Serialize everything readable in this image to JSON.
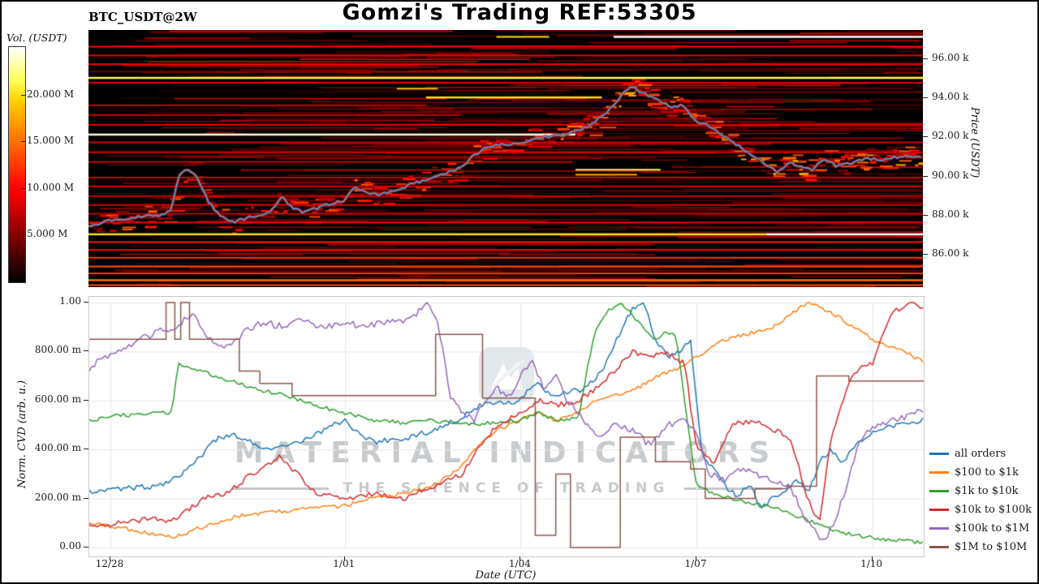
{
  "header": {
    "title": "Gomzi's Trading REF:53305",
    "symbol_label": "BTC_USDT@2W"
  },
  "colorbar": {
    "label": "Vol. (USDT)",
    "ticks": [
      "5.000 M",
      "10.000 M",
      "15.000 M",
      "20.000 M"
    ],
    "tick_values": [
      5,
      10,
      15,
      20
    ],
    "max_value": 25.2
  },
  "price_axis": {
    "label": "Price (USDT)",
    "ticks": [
      "96.00 k",
      "94.00 k",
      "92.00 k",
      "90.00 k",
      "88.00 k",
      "86.00 k"
    ],
    "tick_values": [
      96,
      94,
      92,
      90,
      88,
      86
    ]
  },
  "cvd_axis": {
    "ylabel": "Norm. CVD (arb. u.)",
    "xlabel": "Date (UTC)",
    "yticks": [
      "0.00",
      "200.00 m",
      "400.00 m",
      "600.00 m",
      "800.00 m",
      "1.00"
    ],
    "ytick_values": [
      0,
      0.2,
      0.4,
      0.6,
      0.8,
      1.0
    ],
    "xticks": [
      "12/28",
      "1/01",
      "1/04",
      "1/07",
      "1/10"
    ],
    "xtick_values": [
      1,
      5,
      8,
      11,
      14
    ]
  },
  "watermark": {
    "line1": "MATERIAL INDICATORS",
    "line2": "THE SCIENCE OF TRADING"
  },
  "chart_data": [
    {
      "type": "heatmap",
      "name": "volume-liquidity-heatmap",
      "x_unit": "days (12/27 = 0)",
      "xlim": [
        0.64,
        14.88
      ],
      "price_range_k": [
        84.3,
        97.45
      ],
      "colormap": "hot",
      "volume_max_musdt": 25.2,
      "price_line": {
        "name": "BTC price (k USDT)",
        "color": "#4f9bdb",
        "t": [
          0.64,
          1.0,
          1.5,
          1.9,
          2.05,
          2.2,
          2.35,
          2.5,
          2.7,
          2.9,
          3.1,
          3.4,
          3.7,
          3.95,
          4.1,
          4.3,
          4.5,
          4.8,
          5.0,
          5.15,
          5.3,
          5.6,
          5.9,
          6.2,
          6.5,
          6.8,
          7.0,
          7.2,
          7.45,
          7.7,
          8.0,
          8.2,
          8.5,
          8.8,
          9.0,
          9.2,
          9.5,
          9.7,
          9.9,
          10.05,
          10.2,
          10.4,
          10.6,
          10.8,
          11.0,
          11.2,
          11.5,
          11.8,
          12.0,
          12.2,
          12.4,
          12.6,
          12.8,
          13.0,
          13.2,
          13.4,
          13.6,
          13.9,
          14.2,
          14.5,
          14.88
        ],
        "p": [
          87.4,
          87.7,
          87.9,
          88.0,
          88.3,
          90.2,
          90.3,
          89.9,
          88.6,
          87.9,
          87.6,
          87.9,
          88.1,
          88.9,
          88.4,
          88.1,
          88.3,
          88.6,
          88.7,
          89.4,
          89.2,
          89.0,
          89.3,
          89.6,
          89.9,
          90.2,
          90.4,
          91.0,
          91.5,
          91.6,
          91.6,
          91.9,
          92.0,
          92.1,
          92.3,
          92.6,
          93.3,
          94.0,
          94.6,
          94.3,
          94.1,
          93.8,
          93.5,
          93.6,
          92.8,
          92.6,
          92.0,
          91.4,
          91.0,
          90.5,
          90.2,
          90.7,
          90.4,
          90.3,
          90.9,
          90.5,
          90.6,
          90.9,
          90.8,
          91.0,
          90.9
        ]
      },
      "liquidity_bands": [
        {
          "p": 97.1,
          "x0": 9.6,
          "x1": 14.88,
          "v": 1.0,
          "h": 2.5
        },
        {
          "p": 97.1,
          "x0": 7.6,
          "x1": 8.5,
          "v": 0.8,
          "h": 2
        },
        {
          "p": 95.0,
          "x0": 0.64,
          "x1": 14.88,
          "v": 0.85,
          "h": 2.5
        },
        {
          "p": 94.45,
          "x0": 5.9,
          "x1": 6.6,
          "v": 0.75,
          "h": 2
        },
        {
          "p": 94.0,
          "x0": 6.4,
          "x1": 9.4,
          "v": 0.8,
          "h": 2.5
        },
        {
          "p": 92.1,
          "x0": 0.64,
          "x1": 8.95,
          "v": 0.97,
          "h": 2.5
        },
        {
          "p": 90.3,
          "x0": 8.95,
          "x1": 10.4,
          "v": 0.85,
          "h": 2
        },
        {
          "p": 90.05,
          "x0": 8.95,
          "x1": 10.0,
          "v": 0.7,
          "h": 2
        },
        {
          "p": 87.0,
          "x0": 0.64,
          "x1": 12.2,
          "v": 0.8,
          "h": 2.5
        },
        {
          "p": 87.0,
          "x0": 12.2,
          "x1": 14.88,
          "v": 1.0,
          "h": 2.5
        },
        {
          "p": 96.6,
          "x0": 0.64,
          "x1": 14.88,
          "v": 0.4,
          "h": 2
        },
        {
          "p": 96.15,
          "x0": 0.64,
          "x1": 14.88,
          "v": 0.35,
          "h": 2
        },
        {
          "p": 95.7,
          "x0": 0.64,
          "x1": 14.88,
          "v": 0.38,
          "h": 2
        },
        {
          "p": 94.75,
          "x0": 0.64,
          "x1": 14.88,
          "v": 0.35,
          "h": 2
        },
        {
          "p": 93.6,
          "x0": 0.64,
          "x1": 6.4,
          "v": 0.3,
          "h": 2
        },
        {
          "p": 93.1,
          "x0": 0.64,
          "x1": 7.0,
          "v": 0.32,
          "h": 2
        },
        {
          "p": 92.6,
          "x0": 0.64,
          "x1": 14.88,
          "v": 0.35,
          "h": 2
        },
        {
          "p": 91.7,
          "x0": 0.64,
          "x1": 14.88,
          "v": 0.32,
          "h": 2
        },
        {
          "p": 91.2,
          "x0": 0.64,
          "x1": 14.88,
          "v": 0.35,
          "h": 2
        },
        {
          "p": 90.7,
          "x0": 0.64,
          "x1": 8.9,
          "v": 0.3,
          "h": 2
        },
        {
          "p": 89.9,
          "x0": 0.64,
          "x1": 14.88,
          "v": 0.3,
          "h": 2
        },
        {
          "p": 89.45,
          "x0": 0.64,
          "x1": 14.88,
          "v": 0.33,
          "h": 2
        },
        {
          "p": 88.95,
          "x0": 0.64,
          "x1": 14.88,
          "v": 0.3,
          "h": 2
        },
        {
          "p": 88.5,
          "x0": 0.64,
          "x1": 14.88,
          "v": 0.33,
          "h": 2
        },
        {
          "p": 88.05,
          "x0": 0.64,
          "x1": 14.88,
          "v": 0.3,
          "h": 2
        },
        {
          "p": 87.6,
          "x0": 0.64,
          "x1": 14.88,
          "v": 0.35,
          "h": 2
        },
        {
          "p": 86.6,
          "x0": 0.64,
          "x1": 14.88,
          "v": 0.45,
          "h": 2
        },
        {
          "p": 86.2,
          "x0": 0.64,
          "x1": 14.88,
          "v": 0.4,
          "h": 2
        },
        {
          "p": 85.8,
          "x0": 0.64,
          "x1": 14.88,
          "v": 0.5,
          "h": 2
        },
        {
          "p": 85.35,
          "x0": 0.64,
          "x1": 14.88,
          "v": 0.55,
          "h": 2
        },
        {
          "p": 85.0,
          "x0": 0.64,
          "x1": 14.88,
          "v": 0.5,
          "h": 2
        },
        {
          "p": 84.65,
          "x0": 0.64,
          "x1": 14.88,
          "v": 0.6,
          "h": 2.5
        },
        {
          "p": 84.4,
          "x0": 0.64,
          "x1": 14.88,
          "v": 0.55,
          "h": 2
        }
      ]
    },
    {
      "type": "line",
      "name": "normalized-cvd",
      "xlabel": "Date (UTC)",
      "ylabel": "Norm. CVD (arb. u.)",
      "x_unit": "days (12/27 = 0)",
      "xlim": [
        0.64,
        14.88
      ],
      "ylim": [
        -0.04,
        1.06
      ],
      "grid": true,
      "legend_position": "right-outside",
      "series": [
        {
          "name": "all orders",
          "color": "#1f77b4",
          "step": false,
          "t": [
            0.64,
            1.2,
            1.8,
            2.2,
            2.5,
            2.8,
            3.1,
            3.4,
            3.7,
            4.0,
            4.4,
            4.8,
            5.0,
            5.2,
            5.5,
            5.8,
            6.1,
            6.4,
            6.7,
            7.0,
            7.3,
            7.6,
            7.9,
            8.1,
            8.3,
            8.5,
            8.8,
            9.1,
            9.4,
            9.7,
            9.9,
            10.1,
            10.3,
            10.5,
            10.7,
            10.9,
            11.0,
            11.1,
            11.3,
            11.5,
            11.7,
            11.9,
            12.1,
            12.3,
            12.5,
            12.7,
            12.9,
            13.1,
            13.3,
            13.5,
            13.7,
            13.9,
            14.1,
            14.4,
            14.88
          ],
          "v": [
            0.23,
            0.24,
            0.25,
            0.3,
            0.36,
            0.44,
            0.46,
            0.43,
            0.4,
            0.41,
            0.45,
            0.5,
            0.52,
            0.47,
            0.43,
            0.44,
            0.45,
            0.47,
            0.5,
            0.53,
            0.58,
            0.6,
            0.59,
            0.63,
            0.68,
            0.62,
            0.63,
            0.65,
            0.72,
            0.88,
            0.97,
            1.0,
            0.85,
            0.78,
            0.8,
            0.84,
            0.6,
            0.38,
            0.32,
            0.25,
            0.21,
            0.26,
            0.16,
            0.2,
            0.22,
            0.28,
            0.22,
            0.35,
            0.4,
            0.35,
            0.42,
            0.45,
            0.48,
            0.5,
            0.52
          ]
        },
        {
          "name": "$100 to $1k",
          "color": "#ff7f0e",
          "step": false,
          "t": [
            0.64,
            1.2,
            1.8,
            2.1,
            2.4,
            2.8,
            3.2,
            3.6,
            4.0,
            4.5,
            5.0,
            5.5,
            6.0,
            6.5,
            7.0,
            7.3,
            7.6,
            8.0,
            8.3,
            8.6,
            9.0,
            9.3,
            9.6,
            10.0,
            10.3,
            10.6,
            11.0,
            11.5,
            12.0,
            12.3,
            12.6,
            12.9,
            13.2,
            13.5,
            13.8,
            14.1,
            14.5,
            14.88
          ],
          "v": [
            0.1,
            0.08,
            0.05,
            0.04,
            0.07,
            0.1,
            0.13,
            0.14,
            0.15,
            0.16,
            0.17,
            0.2,
            0.22,
            0.25,
            0.33,
            0.42,
            0.48,
            0.52,
            0.55,
            0.52,
            0.55,
            0.6,
            0.62,
            0.65,
            0.7,
            0.72,
            0.78,
            0.85,
            0.88,
            0.9,
            0.95,
            1.0,
            0.97,
            0.93,
            0.88,
            0.84,
            0.8,
            0.76
          ]
        },
        {
          "name": "$1k to $10k",
          "color": "#2ca02c",
          "step": false,
          "t": [
            0.64,
            1.2,
            1.8,
            2.05,
            2.15,
            2.4,
            2.8,
            3.2,
            3.6,
            4.0,
            4.5,
            5.0,
            5.5,
            6.0,
            6.5,
            7.0,
            7.5,
            8.0,
            8.3,
            8.6,
            9.0,
            9.15,
            9.3,
            9.5,
            9.7,
            9.9,
            10.1,
            10.3,
            10.5,
            10.65,
            10.8,
            11.0,
            11.3,
            11.6,
            12.0,
            12.5,
            13.0,
            13.5,
            14.0,
            14.4,
            14.88
          ],
          "v": [
            0.52,
            0.54,
            0.55,
            0.55,
            0.75,
            0.73,
            0.7,
            0.67,
            0.64,
            0.62,
            0.58,
            0.55,
            0.52,
            0.51,
            0.52,
            0.5,
            0.51,
            0.52,
            0.55,
            0.52,
            0.53,
            0.75,
            0.9,
            0.97,
            1.0,
            0.95,
            0.9,
            0.85,
            0.88,
            0.87,
            0.6,
            0.25,
            0.22,
            0.2,
            0.18,
            0.15,
            0.1,
            0.06,
            0.04,
            0.03,
            0.02
          ]
        },
        {
          "name": "$10k to $100k",
          "color": "#d62728",
          "step": false,
          "t": [
            0.64,
            1.2,
            1.7,
            2.0,
            2.3,
            2.6,
            3.0,
            3.3,
            3.6,
            3.9,
            4.2,
            4.5,
            5.0,
            5.5,
            6.0,
            6.5,
            7.0,
            7.3,
            7.6,
            8.0,
            8.3,
            8.6,
            9.0,
            9.3,
            9.6,
            9.9,
            10.2,
            10.5,
            10.8,
            11.0,
            11.3,
            11.6,
            12.0,
            12.3,
            12.6,
            12.9,
            13.1,
            13.3,
            13.5,
            13.7,
            14.0,
            14.3,
            14.6,
            14.88
          ],
          "v": [
            0.09,
            0.1,
            0.12,
            0.1,
            0.15,
            0.2,
            0.22,
            0.28,
            0.33,
            0.37,
            0.3,
            0.22,
            0.2,
            0.22,
            0.2,
            0.25,
            0.3,
            0.42,
            0.5,
            0.55,
            0.6,
            0.58,
            0.6,
            0.65,
            0.72,
            0.8,
            0.78,
            0.8,
            0.75,
            0.4,
            0.35,
            0.5,
            0.52,
            0.48,
            0.45,
            0.2,
            0.1,
            0.45,
            0.6,
            0.72,
            0.75,
            0.95,
            1.0,
            0.98
          ]
        },
        {
          "name": "$100k to $1M",
          "color": "#9467bd",
          "step": false,
          "t": [
            0.64,
            0.9,
            1.2,
            1.5,
            1.8,
            2.1,
            2.4,
            2.7,
            3.0,
            3.3,
            3.6,
            4.0,
            4.3,
            4.6,
            5.0,
            5.3,
            5.6,
            6.0,
            6.2,
            6.4,
            6.6,
            6.8,
            7.0,
            7.2,
            7.4,
            7.6,
            7.8,
            8.0,
            8.2,
            8.4,
            8.6,
            8.8,
            9.0,
            9.3,
            9.6,
            9.9,
            10.2,
            10.5,
            10.8,
            11.0,
            11.2,
            11.5,
            11.8,
            12.0,
            12.3,
            12.6,
            12.9,
            13.2,
            13.5,
            13.8,
            14.1,
            14.4,
            14.88
          ],
          "v": [
            0.73,
            0.78,
            0.8,
            0.85,
            0.88,
            0.9,
            0.95,
            0.85,
            0.82,
            0.88,
            0.92,
            0.9,
            0.93,
            0.9,
            0.92,
            0.9,
            0.92,
            0.93,
            0.95,
            1.0,
            0.9,
            0.62,
            0.55,
            0.52,
            0.6,
            0.65,
            0.62,
            0.7,
            0.75,
            0.65,
            0.7,
            0.6,
            0.55,
            0.45,
            0.5,
            0.48,
            0.42,
            0.5,
            0.52,
            0.48,
            0.3,
            0.28,
            0.33,
            0.3,
            0.28,
            0.25,
            0.1,
            0.02,
            0.2,
            0.45,
            0.5,
            0.52,
            0.57
          ]
        },
        {
          "name": "$1M to $10M",
          "color": "#8c564b",
          "step": true,
          "t": [
            0.64,
            1.95,
            2.1,
            2.2,
            2.35,
            3.2,
            3.55,
            4.1,
            6.55,
            7.35,
            8.25,
            8.6,
            8.85,
            9.7,
            10.3,
            10.9,
            11.15,
            12.0,
            12.55,
            13.05,
            13.6,
            14.88
          ],
          "v": [
            0.85,
            1.0,
            0.85,
            1.0,
            0.85,
            0.72,
            0.67,
            0.62,
            0.87,
            0.61,
            0.05,
            0.3,
            0.0,
            0.45,
            0.35,
            0.32,
            0.2,
            0.24,
            0.25,
            0.7,
            0.68,
            0.68
          ]
        }
      ]
    }
  ]
}
